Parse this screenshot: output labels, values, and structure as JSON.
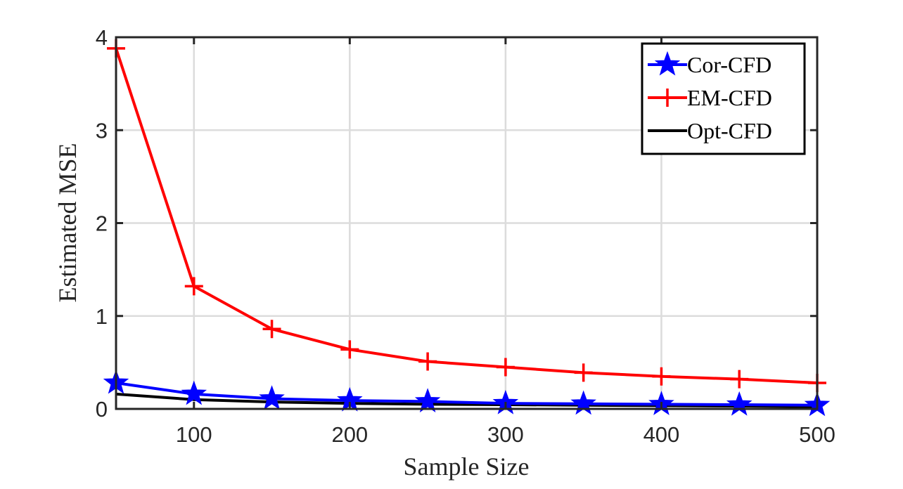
{
  "chart_data": {
    "type": "line",
    "xlabel": "Sample Size",
    "ylabel": "Estimated MSE",
    "xlim": [
      50,
      500
    ],
    "ylim": [
      0,
      4
    ],
    "xticks": [
      100,
      200,
      300,
      400,
      500
    ],
    "yticks": [
      0,
      1,
      2,
      3,
      4
    ],
    "grid": true,
    "legend_position": "top-right",
    "x": [
      50,
      100,
      150,
      200,
      250,
      300,
      350,
      400,
      450,
      500
    ],
    "series": [
      {
        "name": "Cor-CFD",
        "color": "#0000ff",
        "marker": "star",
        "values": [
          0.28,
          0.16,
          0.11,
          0.09,
          0.08,
          0.06,
          0.055,
          0.05,
          0.045,
          0.04
        ]
      },
      {
        "name": "EM-CFD",
        "color": "#ff0000",
        "marker": "plus",
        "values": [
          3.88,
          1.32,
          0.86,
          0.64,
          0.51,
          0.45,
          0.39,
          0.35,
          0.32,
          0.28
        ]
      },
      {
        "name": "Opt-CFD",
        "color": "#000000",
        "marker": "none",
        "values": [
          0.16,
          0.1,
          0.075,
          0.06,
          0.05,
          0.045,
          0.04,
          0.035,
          0.03,
          0.025
        ]
      }
    ]
  }
}
